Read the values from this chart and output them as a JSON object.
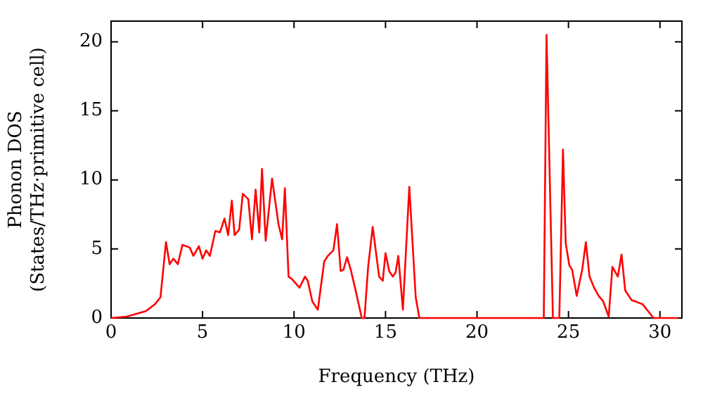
{
  "chart_data": {
    "type": "line",
    "xlabel": "Frequency (THz)",
    "ylabel": "Phonon DOS\n(States/THz·primitive cell)",
    "xlim": [
      0,
      31.2
    ],
    "ylim": [
      0,
      21.5
    ],
    "xticks": [
      0,
      5,
      10,
      15,
      20,
      25,
      30
    ],
    "yticks": [
      0,
      5,
      10,
      15,
      20
    ],
    "grid": false,
    "legend": false,
    "marker": "none",
    "line_style": "solid",
    "series": [
      {
        "color": "#ff0000",
        "x": [
          0,
          0.85,
          1.9,
          2.4,
          2.7,
          3.0,
          3.2,
          3.4,
          3.65,
          3.9,
          4.3,
          4.5,
          4.8,
          5.0,
          5.2,
          5.4,
          5.7,
          5.95,
          6.2,
          6.4,
          6.6,
          6.75,
          7.0,
          7.2,
          7.5,
          7.7,
          7.9,
          8.1,
          8.25,
          8.45,
          8.8,
          9.15,
          9.35,
          9.5,
          9.7,
          9.9,
          10.3,
          10.6,
          10.75,
          11.0,
          11.3,
          11.65,
          11.85,
          12.15,
          12.35,
          12.55,
          12.7,
          12.9,
          13.1,
          13.4,
          13.7,
          13.85,
          14.05,
          14.3,
          14.65,
          14.85,
          15.0,
          15.2,
          15.4,
          15.55,
          15.7,
          15.95,
          16.3,
          16.65,
          16.85,
          23.65,
          23.8,
          24.15,
          24.5,
          24.7,
          24.85,
          25.05,
          25.2,
          25.45,
          25.75,
          25.95,
          26.15,
          26.4,
          26.65,
          26.9,
          27.2,
          27.4,
          27.7,
          27.9,
          28.1,
          28.45,
          29.05,
          29.65,
          31.0
        ],
        "values": [
          0,
          0.1,
          0.5,
          1.0,
          1.5,
          5.5,
          3.9,
          4.3,
          3.9,
          5.3,
          5.1,
          4.5,
          5.2,
          4.3,
          4.9,
          4.5,
          6.3,
          6.2,
          7.2,
          6.0,
          8.5,
          6.0,
          6.4,
          9.0,
          8.6,
          5.7,
          9.3,
          6.2,
          10.8,
          5.6,
          10.1,
          6.8,
          5.7,
          9.4,
          3.0,
          2.8,
          2.2,
          3.0,
          2.7,
          1.2,
          0.6,
          4.1,
          4.5,
          4.9,
          6.8,
          3.4,
          3.5,
          4.4,
          3.5,
          1.8,
          0,
          0,
          3.7,
          6.6,
          3.0,
          2.7,
          4.7,
          3.4,
          3.0,
          3.3,
          4.5,
          0.6,
          9.5,
          1.5,
          0,
          0,
          20.5,
          0,
          0,
          12.2,
          5.4,
          3.8,
          3.5,
          1.6,
          3.5,
          5.5,
          3.0,
          2.2,
          1.6,
          1.2,
          0.1,
          3.7,
          3.0,
          4.6,
          2.0,
          1.3,
          1.0,
          0,
          0
        ]
      }
    ]
  }
}
